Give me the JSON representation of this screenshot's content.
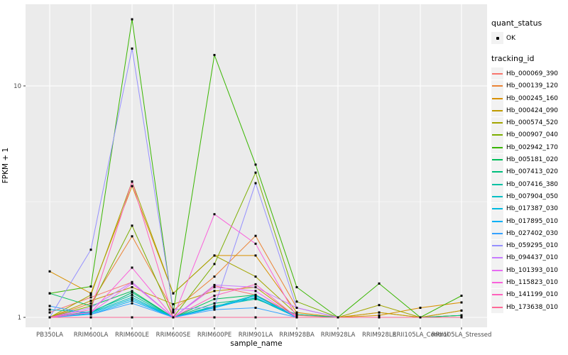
{
  "figure": {
    "panel_bg": "#EBEBEB",
    "grid_color": "#FFFFFF",
    "tick_label_color": "#4D4D4D",
    "point_color": "#000000"
  },
  "axes": {
    "x_title": "sample_name",
    "y_title": "FPKM + 1",
    "y_tick_labels": [
      "1",
      "10"
    ],
    "x_tick_labels": [
      "PB350LA",
      "RRIM600LA",
      "RRIM600LE",
      "RRIM600SE",
      "RRIM600PE",
      "RRIM901LA",
      "RRIM928BA",
      "RRIM928LA",
      "RRIM928LE",
      "RRII105LA_Control",
      "RRII105LA_Stressed"
    ]
  },
  "legend": {
    "quant_status_title": "quant_status",
    "ok_label": "OK",
    "tracking_title": "tracking_id"
  },
  "chart_data": {
    "type": "line",
    "title": "",
    "xlabel": "sample_name",
    "ylabel": "FPKM + 1",
    "yscale": "log10",
    "ylim": [
      0.93,
      22
    ],
    "y_major_ticks": [
      1,
      10
    ],
    "y_minor_ticks": [
      3.1623
    ],
    "grid": true,
    "legend_position": "right",
    "marker": "black-square",
    "x": [
      "PB350LA",
      "RRIM600LA",
      "RRIM600LE",
      "RRIM600SE",
      "RRIM600PE",
      "RRIM901LA",
      "RRIM928BA",
      "RRIM928LA",
      "RRIM928LE",
      "RRII105LA_Control",
      "RRII105LA_Stressed"
    ],
    "series": [
      {
        "name": "Hb_000069_390",
        "color": "#F8766D",
        "values": [
          1.05,
          1.22,
          1.42,
          1.0,
          1.37,
          1.25,
          1.02,
          1.0,
          1.0,
          1.0,
          1.0
        ]
      },
      {
        "name": "Hb_000139_120",
        "color": "#EB8335",
        "values": [
          1.0,
          1.15,
          2.24,
          1.07,
          1.5,
          2.25,
          1.1,
          1.0,
          1.05,
          1.0,
          1.07
        ]
      },
      {
        "name": "Hb_000245_160",
        "color": "#D89000",
        "values": [
          1.58,
          1.27,
          3.69,
          1.27,
          1.85,
          1.85,
          1.05,
          1.0,
          1.02,
          1.1,
          1.16
        ]
      },
      {
        "name": "Hb_000424_090",
        "color": "#BF9B00",
        "values": [
          1.0,
          1.18,
          1.35,
          1.14,
          1.3,
          1.35,
          1.0,
          1.0,
          1.05,
          1.0,
          1.07
        ]
      },
      {
        "name": "Hb_000574_520",
        "color": "#A3A500",
        "values": [
          1.0,
          1.25,
          3.86,
          1.27,
          1.85,
          1.5,
          1.03,
          1.0,
          1.13,
          1.0,
          1.02
        ]
      },
      {
        "name": "Hb_000907_040",
        "color": "#7CAE00",
        "values": [
          1.0,
          1.12,
          2.49,
          1.0,
          1.7,
          4.22,
          1.17,
          1.0,
          1.0,
          1.0,
          1.02
        ]
      },
      {
        "name": "Hb_002942_170",
        "color": "#39B600",
        "values": [
          1.27,
          1.36,
          19.4,
          1.05,
          13.6,
          4.57,
          1.35,
          1.0,
          1.4,
          1.0,
          1.24
        ]
      },
      {
        "name": "Hb_005181_020",
        "color": "#00BC59",
        "values": [
          1.27,
          1.12,
          1.3,
          1.0,
          1.2,
          1.25,
          1.0,
          1.0,
          1.0,
          1.0,
          1.0
        ]
      },
      {
        "name": "Hb_007413_020",
        "color": "#00BF7D",
        "values": [
          1.0,
          1.05,
          1.28,
          1.0,
          1.15,
          1.21,
          1.0,
          1.0,
          1.0,
          1.0,
          1.02
        ]
      },
      {
        "name": "Hb_007416_380",
        "color": "#00C1A3",
        "values": [
          1.0,
          1.06,
          1.25,
          1.0,
          1.12,
          1.2,
          1.03,
          1.0,
          1.0,
          1.0,
          1.0
        ]
      },
      {
        "name": "Hb_007904_050",
        "color": "#00BFC4",
        "values": [
          1.08,
          1.05,
          1.22,
          1.0,
          1.11,
          1.25,
          1.0,
          1.0,
          1.0,
          1.0,
          1.0
        ]
      },
      {
        "name": "Hb_017387_030",
        "color": "#00BAE0",
        "values": [
          1.0,
          1.04,
          1.2,
          1.0,
          1.1,
          1.24,
          1.0,
          1.0,
          1.0,
          1.0,
          1.0
        ]
      },
      {
        "name": "Hb_017895_010",
        "color": "#00B0F6",
        "values": [
          1.0,
          1.03,
          1.18,
          1.0,
          1.1,
          1.22,
          1.0,
          1.0,
          1.0,
          1.0,
          1.0
        ]
      },
      {
        "name": "Hb_027402_030",
        "color": "#35A2FF",
        "values": [
          1.12,
          1.03,
          1.15,
          1.0,
          1.08,
          1.1,
          1.0,
          1.0,
          1.0,
          1.0,
          1.0
        ]
      },
      {
        "name": "Hb_059295_010",
        "color": "#9590FF",
        "values": [
          1.0,
          1.96,
          14.5,
          1.08,
          1.11,
          3.8,
          1.1,
          1.0,
          1.0,
          1.0,
          1.0
        ]
      },
      {
        "name": "Hb_094437_010",
        "color": "#C77CFF",
        "values": [
          1.0,
          1.1,
          1.42,
          1.0,
          1.38,
          1.35,
          1.1,
          1.0,
          1.0,
          1.0,
          1.0
        ]
      },
      {
        "name": "Hb_101393_010",
        "color": "#E76BF3",
        "values": [
          1.0,
          1.05,
          1.4,
          1.0,
          1.35,
          1.3,
          1.0,
          1.0,
          1.0,
          1.0,
          1.0
        ]
      },
      {
        "name": "Hb_115823_010",
        "color": "#FA62DB",
        "values": [
          1.0,
          1.05,
          1.64,
          1.0,
          2.79,
          2.08,
          1.0,
          1.0,
          1.0,
          1.0,
          1.0
        ]
      },
      {
        "name": "Hb_141199_010",
        "color": "#FF62BC",
        "values": [
          1.0,
          1.08,
          3.86,
          1.0,
          1.24,
          1.39,
          1.0,
          1.0,
          1.0,
          1.0,
          1.0
        ]
      },
      {
        "name": "Hb_173638_010",
        "color": "#FF6A98",
        "values": [
          1.0,
          1.0,
          1.0,
          1.0,
          1.0,
          1.0,
          1.0,
          1.0,
          1.0,
          1.0,
          1.0
        ]
      }
    ]
  }
}
